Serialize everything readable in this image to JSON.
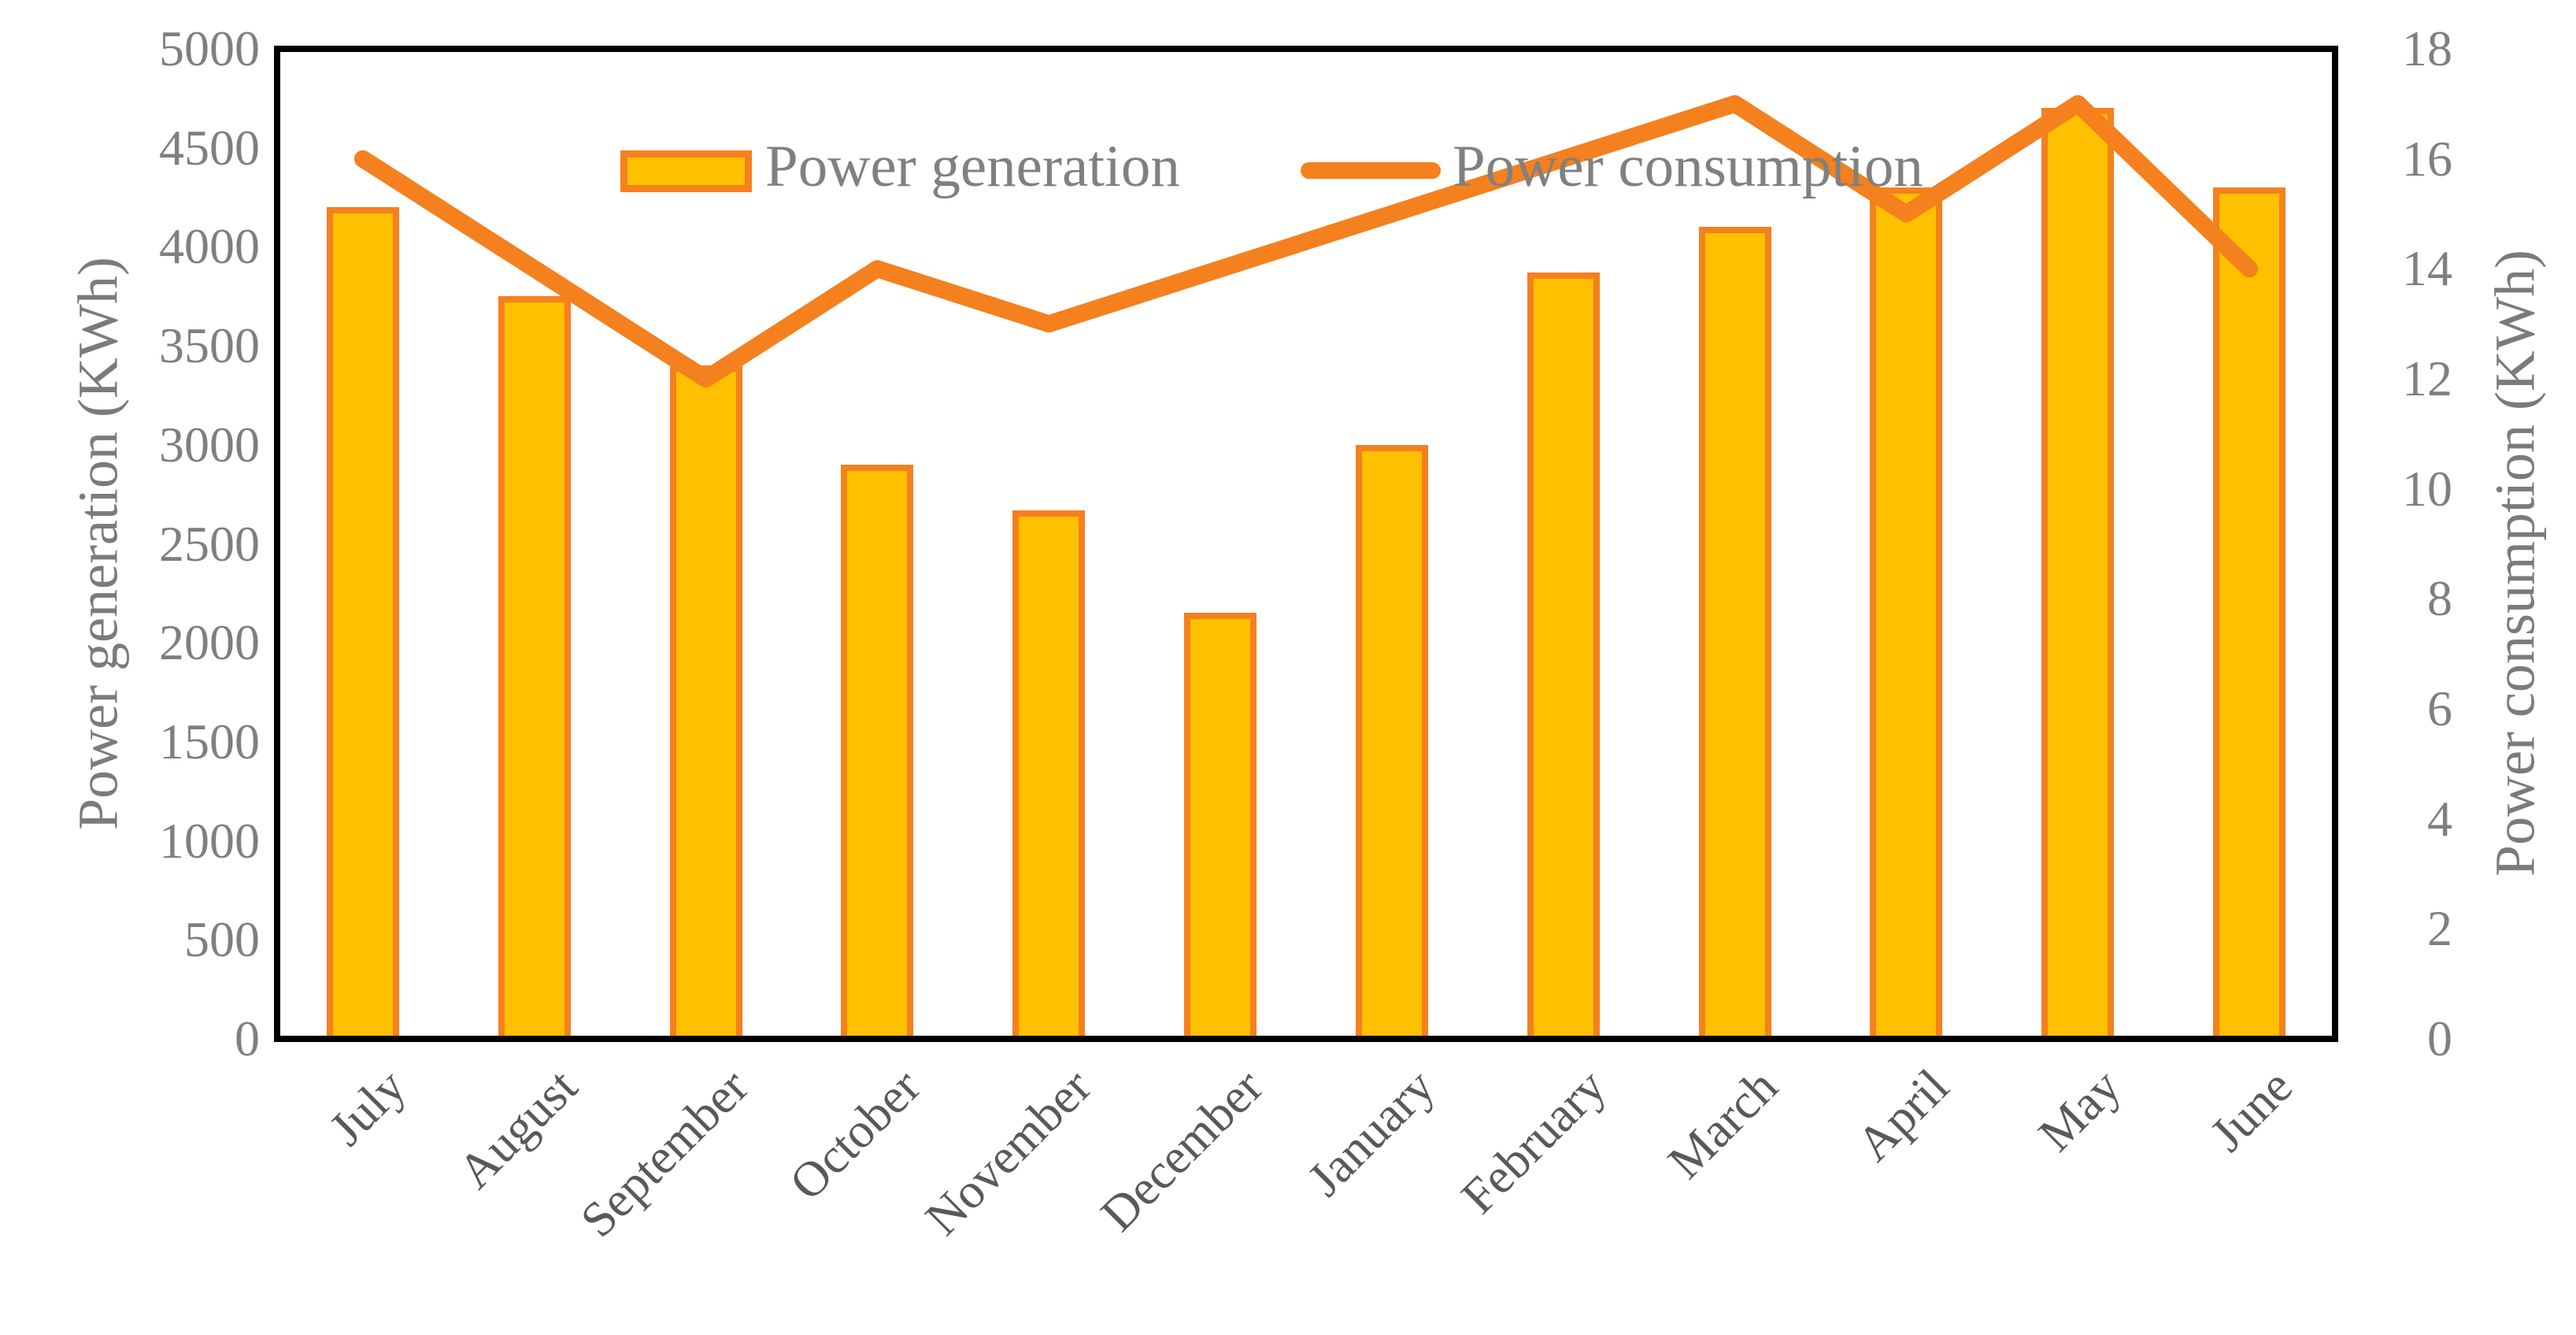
{
  "legend": {
    "generation_label": "Power generation",
    "consumption_label": "Power consumption"
  },
  "axes": {
    "left_title": "Power generation (KWh)",
    "right_title": "Power consumption (KWh)",
    "left_tick_labels": [
      "5000",
      "4500",
      "4000",
      "3500",
      "3000",
      "2500",
      "2000",
      "1500",
      "1000",
      "500",
      "0"
    ],
    "right_tick_labels": [
      "18",
      "16",
      "14",
      "12",
      "10",
      "8",
      "6",
      "4",
      "2",
      "0"
    ]
  },
  "chart_data": {
    "type": "combo-bar-line",
    "categories": [
      "July",
      "August",
      "September",
      "October",
      "November",
      "December",
      "January",
      "February",
      "March",
      "April",
      "May",
      "June"
    ],
    "series": [
      {
        "name": "Power generation",
        "type": "bar",
        "axis": "left",
        "values": [
          4200,
          3750,
          3400,
          2900,
          2670,
          2150,
          3000,
          3870,
          4100,
          4300,
          4700,
          4300
        ]
      },
      {
        "name": "Power consumption",
        "type": "line",
        "axis": "right",
        "values": [
          16,
          14,
          12,
          14,
          13,
          14,
          15,
          16,
          17,
          15,
          17,
          14
        ]
      }
    ],
    "left_axis": {
      "label": "Power generation (KWh)",
      "min": 0,
      "max": 5000,
      "step": 500
    },
    "right_axis": {
      "label": "Power consumption (KWh)",
      "min": 0,
      "max": 18,
      "step": 2
    },
    "grid": false,
    "legend_position": "top-center-inside"
  },
  "colors": {
    "bar_fill": "#FFC000",
    "bar_border": "#F5801E",
    "line": "#F5801E",
    "frame": "#000000",
    "tick_text": "#7f7f7f",
    "month_text": "#595959",
    "title_text": "#7b7b7b",
    "legend_text": "#808080"
  }
}
